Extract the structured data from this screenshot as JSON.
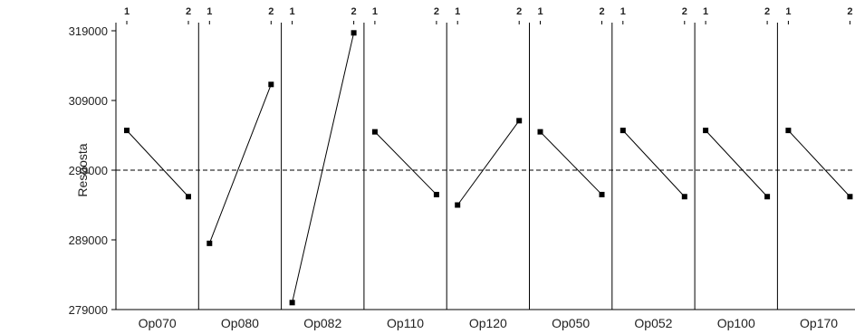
{
  "chart_data": {
    "type": "line",
    "ylabel": "Resposta",
    "yticks": [
      279000,
      289000,
      299000,
      309000,
      319000
    ],
    "ylim": [
      279000,
      320500
    ],
    "reference_line": 299000,
    "levels": [
      "1",
      "2"
    ],
    "panels": [
      {
        "name": "Op070",
        "values": [
          304700,
          295200
        ]
      },
      {
        "name": "Op080",
        "values": [
          288500,
          311300
        ]
      },
      {
        "name": "Op082",
        "values": [
          280000,
          318700
        ]
      },
      {
        "name": "Op110",
        "values": [
          304500,
          295500
        ]
      },
      {
        "name": "Op120",
        "values": [
          294000,
          306100
        ]
      },
      {
        "name": "Op050",
        "values": [
          304500,
          295500
        ]
      },
      {
        "name": "Op052",
        "values": [
          304700,
          295200
        ]
      },
      {
        "name": "Op100",
        "values": [
          304700,
          295200
        ]
      },
      {
        "name": "Op170",
        "values": [
          304700,
          295200
        ]
      }
    ]
  },
  "colors": {
    "line": "#000000",
    "axis": "#000000",
    "reference": "#000000"
  }
}
